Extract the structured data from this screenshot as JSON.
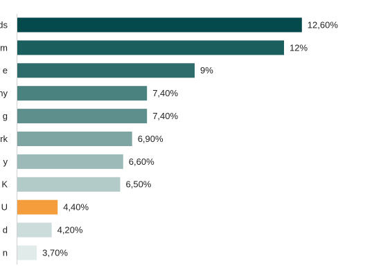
{
  "chart_data": {
    "type": "bar",
    "orientation": "horizontal",
    "categories": [
      "ds",
      "m",
      "e",
      "ny",
      "g",
      "rk",
      "y",
      "K",
      "U",
      "d",
      "n"
    ],
    "values": [
      12.6,
      12,
      9,
      7.4,
      7.4,
      6.9,
      6.6,
      6.5,
      4.4,
      4.2,
      3.7
    ],
    "value_labels": [
      "12,60%",
      "12%",
      "9%",
      "7,40%",
      "7,40%",
      "6,90%",
      "6,60%",
      "6,50%",
      "4,40%",
      "4,20%",
      "3,70%"
    ],
    "colors": [
      "#044a4c",
      "#1a5e5e",
      "#2e6c6b",
      "#4a8280",
      "#5e8f8c",
      "#7fa5a3",
      "#9bbab8",
      "#b2cbc9",
      "#f59d3d",
      "#cbdcdb",
      "#e1ebe9"
    ]
  }
}
